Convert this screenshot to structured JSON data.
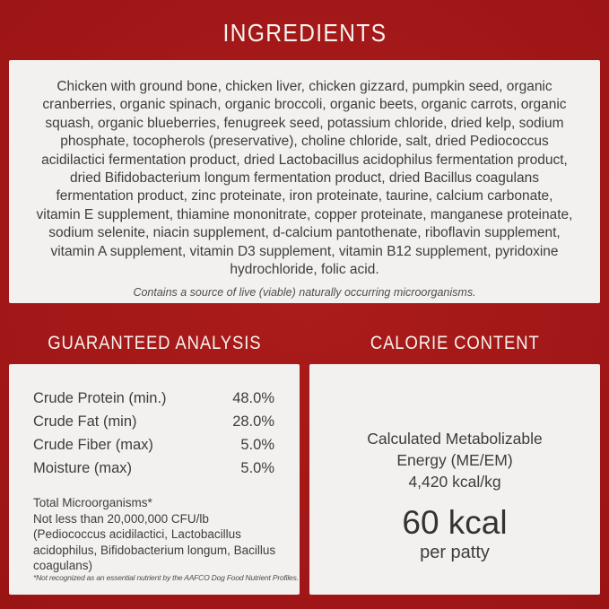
{
  "title": "INGREDIENTS",
  "ingredients": {
    "text": "Chicken with ground bone, chicken liver, chicken gizzard, pumpkin seed, organic cranberries, organic spinach, organic broccoli, organic beets, organic carrots, organic squash, organic blueberries, fenugreek seed, potassium chloride, dried kelp, sodium phosphate, tocopherols (preservative), choline chloride, salt, dried Pediococcus acidilactici fermentation product, dried Lactobacillus acidophilus fermentation product, dried Bifidobacterium longum fermentation product, dried Bacillus coagulans fermentation product, zinc proteinate, iron proteinate, taurine, calcium carbonate, vitamin E supplement, thiamine mononitrate, copper proteinate, manganese proteinate, sodium selenite, niacin supplement, d-calcium pantothenate, riboflavin supplement, vitamin A supplement, vitamin D3 supplement, vitamin B12 supplement, pyridoxine hydrochloride, folic acid.",
    "note": "Contains a source of live (viable) naturally occurring microorganisms."
  },
  "analysis": {
    "heading": "GUARANTEED ANALYSIS",
    "rows": [
      {
        "label": "Crude Protein (min.)",
        "value": "48.0%"
      },
      {
        "label": "Crude Fat (min)",
        "value": "28.0%"
      },
      {
        "label": "Crude Fiber (max)",
        "value": "5.0%"
      },
      {
        "label": "Moisture (max)",
        "value": "5.0%"
      }
    ],
    "micro_title": "Total Microorganisms*",
    "micro_detail": "Not less than 20,000,000 CFU/lb (Pediococcus acidilactici, Lactobacillus acidophilus, Bifidobacterium longum, Bacillus coagulans)",
    "footnote": "*Not recognized as an essential nutrient by the AAFCO Dog Food Nutrient Profiles."
  },
  "calories": {
    "heading": "CALORIE CONTENT",
    "me_label": "Calculated Metabolizable Energy (ME/EM)",
    "me_value": "4,420 kcal/kg",
    "kcal": "60 kcal",
    "kcal_unit": "per patty"
  },
  "colors": {
    "background_red": "#9e1515",
    "panel_offwhite": "#f2f1ef",
    "body_text": "#3d3d3d",
    "heading_text": "#f7f3ee"
  }
}
